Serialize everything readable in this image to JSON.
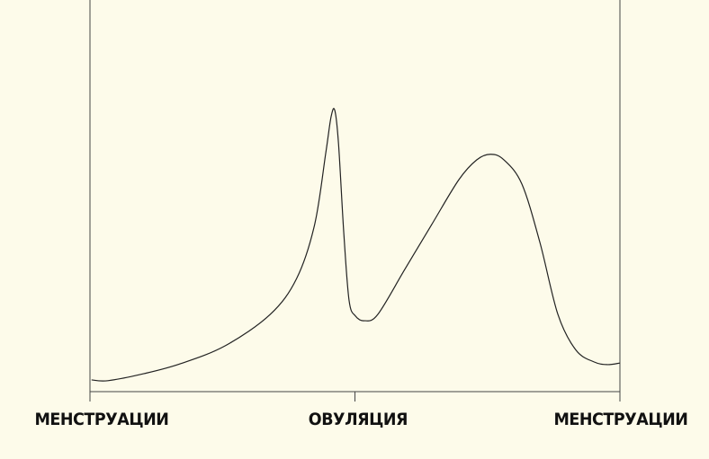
{
  "chart_data": {
    "type": "line",
    "title": "",
    "xlabel": "",
    "ylabel": "",
    "xlim": [
      0,
      1
    ],
    "ylim": [
      0,
      1
    ],
    "grid": false,
    "tick_labels": [
      "МЕНСТРУАЦИИ",
      "ОВУЛЯЦИЯ",
      "МЕНСТРУАЦИИ"
    ],
    "tick_positions": [
      0,
      0.5,
      1
    ],
    "line_color": "#222222",
    "background": "#fdfbea",
    "series": [
      {
        "x": [
          0.003,
          0.034,
          0.102,
          0.17,
          0.255,
          0.34,
          0.39,
          0.424,
          0.445,
          0.455,
          0.462,
          0.469,
          0.479,
          0.489,
          0.501,
          0.518,
          0.543,
          0.594,
          0.645,
          0.696,
          0.73,
          0.756,
          0.781,
          0.815,
          0.849,
          0.883,
          0.917,
          0.951,
          0.976,
          1.0
        ],
        "y": [
          0.03,
          0.028,
          0.046,
          0.071,
          0.117,
          0.197,
          0.289,
          0.427,
          0.61,
          0.702,
          0.718,
          0.633,
          0.404,
          0.232,
          0.193,
          0.181,
          0.197,
          0.312,
          0.427,
          0.541,
          0.592,
          0.606,
          0.592,
          0.53,
          0.381,
          0.197,
          0.106,
          0.076,
          0.069,
          0.073
        ]
      }
    ]
  }
}
